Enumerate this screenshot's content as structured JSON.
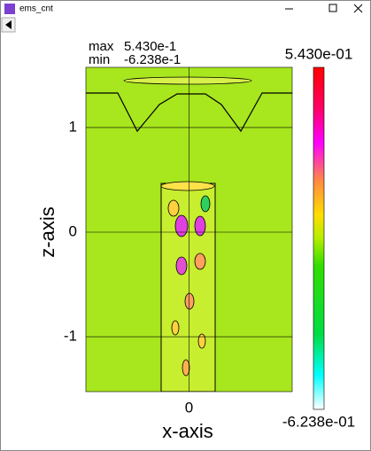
{
  "window": {
    "title": "ems_cnt"
  },
  "plot": {
    "max_label": "max",
    "max_value": "5.430e-1",
    "min_label": "min",
    "min_value": "-6.238e-1",
    "x_label": "x-axis",
    "z_label": "z-axis",
    "xlim": [
      -0.99,
      0.99
    ],
    "zlim": [
      -1.525,
      1.576
    ],
    "xticks": [
      0
    ],
    "zticks": [
      1,
      0,
      -1
    ],
    "colorbar": {
      "max_label": "5.430e-01",
      "min_label": "-6.238e-01"
    }
  }
}
